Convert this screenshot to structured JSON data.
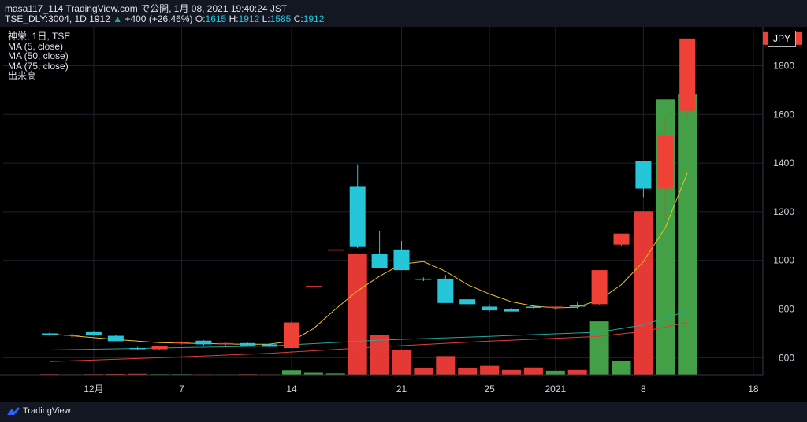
{
  "header": {
    "line1": "masa117_114 TradingView.com で公開, 1月 08, 2021 19:40:24 JST",
    "symbol": "TSE_DLY:3004, 1D 1912",
    "change": "+400 (+26.46%)",
    "o_label": "O:",
    "o_value": "1615",
    "h_label": "H:",
    "h_value": "1912",
    "l_label": "L:",
    "l_value": "1585",
    "c_label": "C:",
    "c_value": "1912"
  },
  "legend": {
    "title": "神栄, 1日, TSE",
    "ma5": "MA (5, close)",
    "ma50": "MA (50, close)",
    "ma75": "MA (75, close)",
    "volume": "出来高"
  },
  "currency": "JPY",
  "footer": {
    "brand": "TradingView"
  },
  "colors": {
    "background": "#000000",
    "up": "#26c6da",
    "down": "#ef4136",
    "vol_up": "#43a047",
    "vol_down": "#e53935",
    "ma5": "#e6c229",
    "ma50": "#26a69a",
    "ma75": "#d9413c",
    "grid": "#1e222d"
  },
  "chart_data": {
    "type": "candlestick",
    "y_axis": {
      "min": 530,
      "max": 1960,
      "ticks": [
        600,
        800,
        1000,
        1200,
        1400,
        1600,
        1800
      ]
    },
    "x_ticks": [
      {
        "label": "12月",
        "day": 1
      },
      {
        "label": "7",
        "day": 5
      },
      {
        "label": "14",
        "day": 10
      },
      {
        "label": "21",
        "day": 15
      },
      {
        "label": "25",
        "day": 19
      },
      {
        "label": "2021",
        "day": 22
      },
      {
        "label": "8",
        "day": 26
      },
      {
        "label": "18",
        "day": 31
      }
    ],
    "candles": [
      {
        "day": -1,
        "o": 700,
        "h": 705,
        "l": 690,
        "c": 692,
        "vol": 4
      },
      {
        "day": 0,
        "o": 690,
        "h": 698,
        "l": 684,
        "c": 695,
        "vol": 3
      },
      {
        "day": 1,
        "o": 705,
        "h": 708,
        "l": 690,
        "c": 693,
        "vol": 4
      },
      {
        "day": 2,
        "o": 690,
        "h": 692,
        "l": 670,
        "c": 668,
        "vol": 5
      },
      {
        "day": 3,
        "o": 640,
        "h": 645,
        "l": 632,
        "c": 638,
        "vol": 6
      },
      {
        "day": 4,
        "o": 635,
        "h": 650,
        "l": 630,
        "c": 648,
        "vol": 4
      },
      {
        "day": 5,
        "o": 660,
        "h": 668,
        "l": 655,
        "c": 665,
        "vol": 4
      },
      {
        "day": 6,
        "o": 670,
        "h": 672,
        "l": 650,
        "c": 655,
        "vol": 3
      },
      {
        "day": 7,
        "o": 655,
        "h": 662,
        "l": 650,
        "c": 660,
        "vol": 3
      },
      {
        "day": 8,
        "o": 660,
        "h": 662,
        "l": 645,
        "c": 650,
        "vol": 4
      },
      {
        "day": 9,
        "o": 655,
        "h": 660,
        "l": 642,
        "c": 645,
        "vol": 3
      },
      {
        "day": 10,
        "o": 640,
        "h": 750,
        "l": 638,
        "c": 745,
        "vol": 28
      },
      {
        "day": 11,
        "o": 895,
        "h": 895,
        "l": 895,
        "c": 895,
        "vol": 12
      },
      {
        "day": 12,
        "o": 1045,
        "h": 1045,
        "l": 1045,
        "c": 1045,
        "vol": 8
      },
      {
        "day": 13,
        "o": 1305,
        "h": 1395,
        "l": 1050,
        "c": 1055,
        "vol": 745
      },
      {
        "day": 14,
        "o": 1025,
        "h": 1120,
        "l": 970,
        "c": 970,
        "vol": 245
      },
      {
        "day": 15,
        "o": 1045,
        "h": 1080,
        "l": 960,
        "c": 960,
        "vol": 155
      },
      {
        "day": 16,
        "o": 925,
        "h": 930,
        "l": 915,
        "c": 920,
        "vol": 40
      },
      {
        "day": 17,
        "o": 925,
        "h": 940,
        "l": 825,
        "c": 825,
        "vol": 115
      },
      {
        "day": 18,
        "o": 840,
        "h": 840,
        "l": 820,
        "c": 820,
        "vol": 40
      },
      {
        "day": 19,
        "o": 810,
        "h": 815,
        "l": 790,
        "c": 795,
        "vol": 55
      },
      {
        "day": 20,
        "o": 800,
        "h": 805,
        "l": 790,
        "c": 790,
        "vol": 30
      },
      {
        "day": 21,
        "o": 810,
        "h": 815,
        "l": 800,
        "c": 808,
        "vol": 45
      },
      {
        "day": 22,
        "o": 805,
        "h": 810,
        "l": 795,
        "c": 810,
        "vol": 25
      },
      {
        "day": 23,
        "o": 815,
        "h": 830,
        "l": 800,
        "c": 812,
        "vol": 30
      },
      {
        "day": 24,
        "o": 820,
        "h": 960,
        "l": 815,
        "c": 960,
        "vol": 330
      },
      {
        "day": 25,
        "o": 1065,
        "h": 1110,
        "l": 1060,
        "c": 1110,
        "vol": 85
      },
      {
        "day": 26,
        "o": 1410,
        "h": 1410,
        "l": 1260,
        "c": 1295,
        "vol": 1010
      },
      {
        "day": 27,
        "o": 1295,
        "h": 1590,
        "l": 1160,
        "c": 1512,
        "vol": 1700
      },
      {
        "day": 28,
        "o": 1615,
        "h": 1912,
        "l": 1585,
        "c": 1912,
        "vol": 1730
      }
    ],
    "ma5": [
      {
        "day": -1,
        "v": 698
      },
      {
        "day": 2,
        "v": 675
      },
      {
        "day": 4,
        "v": 662
      },
      {
        "day": 6,
        "v": 658
      },
      {
        "day": 8,
        "v": 655
      },
      {
        "day": 9,
        "v": 656
      },
      {
        "day": 10,
        "v": 668
      },
      {
        "day": 11,
        "v": 720
      },
      {
        "day": 12,
        "v": 800
      },
      {
        "day": 13,
        "v": 875
      },
      {
        "day": 14,
        "v": 935
      },
      {
        "day": 15,
        "v": 985
      },
      {
        "day": 16,
        "v": 995
      },
      {
        "day": 17,
        "v": 955
      },
      {
        "day": 18,
        "v": 900
      },
      {
        "day": 19,
        "v": 862
      },
      {
        "day": 20,
        "v": 830
      },
      {
        "day": 21,
        "v": 812
      },
      {
        "day": 22,
        "v": 805
      },
      {
        "day": 23,
        "v": 808
      },
      {
        "day": 24,
        "v": 838
      },
      {
        "day": 25,
        "v": 900
      },
      {
        "day": 26,
        "v": 995
      },
      {
        "day": 27,
        "v": 1135
      },
      {
        "day": 28,
        "v": 1360
      }
    ],
    "ma50": [
      {
        "day": -1,
        "v": 632
      },
      {
        "day": 4,
        "v": 640
      },
      {
        "day": 9,
        "v": 648
      },
      {
        "day": 14,
        "v": 672
      },
      {
        "day": 19,
        "v": 688
      },
      {
        "day": 24,
        "v": 705
      },
      {
        "day": 26,
        "v": 735
      },
      {
        "day": 28,
        "v": 792
      }
    ],
    "ma75": [
      {
        "day": -1,
        "v": 584
      },
      {
        "day": 4,
        "v": 600
      },
      {
        "day": 9,
        "v": 618
      },
      {
        "day": 14,
        "v": 645
      },
      {
        "day": 19,
        "v": 668
      },
      {
        "day": 24,
        "v": 688
      },
      {
        "day": 26,
        "v": 708
      },
      {
        "day": 28,
        "v": 745
      }
    ],
    "volume_scale_max": 2100,
    "last_price_label": "1912"
  }
}
